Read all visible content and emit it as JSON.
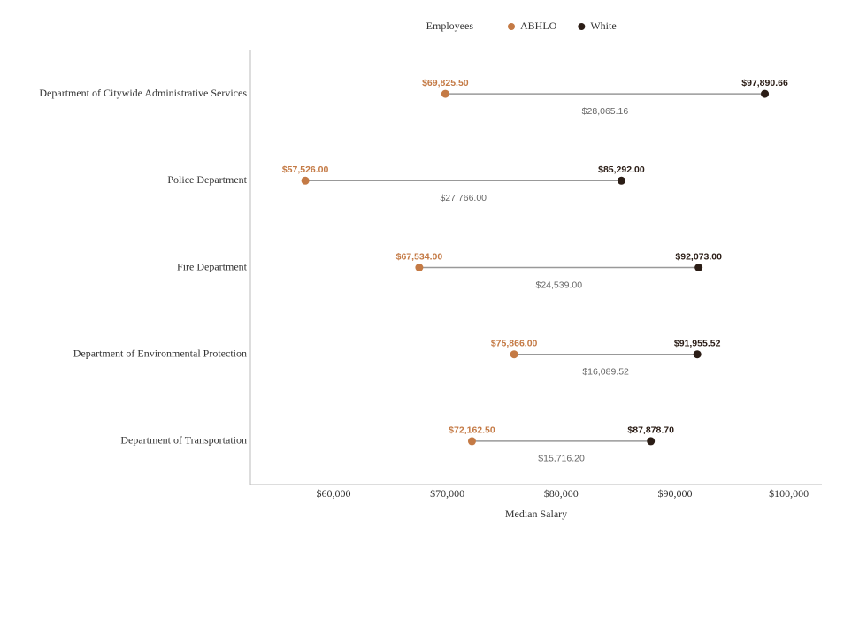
{
  "chart_data": {
    "type": "dumbbell",
    "legend_title": "Employees",
    "x_label": "Median Salary",
    "categories": [
      "Department of Citywide Administrative Services",
      "Police Department",
      "Fire Department",
      "Department of Environmental Protection",
      "Department of Transportation"
    ],
    "series": [
      {
        "name": "ABHLO",
        "color": "#c47a45",
        "values": [
          69825.5,
          57526,
          67534,
          75866,
          72162.5
        ],
        "value_labels": [
          "$69,825.50",
          "$57,526.00",
          "$67,534.00",
          "$75,866.00",
          "$72,162.50"
        ]
      },
      {
        "name": "White",
        "color": "#2b1d16",
        "values": [
          97890.66,
          85292,
          92073,
          91955.52,
          87878.7
        ],
        "value_labels": [
          "$97,890.66",
          "$85,292.00",
          "$92,073.00",
          "$91,955.52",
          "$87,878.70"
        ]
      }
    ],
    "difference_labels": [
      "$28,065.16",
      "$27,766.00",
      "$24,539.00",
      "$16,089.52",
      "$15,716.20"
    ],
    "xlim": [
      52700,
      102900
    ],
    "xticks": [
      {
        "value": 60000,
        "label": "$60,000"
      },
      {
        "value": 70000,
        "label": "$70,000"
      },
      {
        "value": 80000,
        "label": "$80,000"
      },
      {
        "value": 90000,
        "label": "$90,000"
      },
      {
        "value": 100000,
        "label": "$100,000"
      }
    ]
  }
}
